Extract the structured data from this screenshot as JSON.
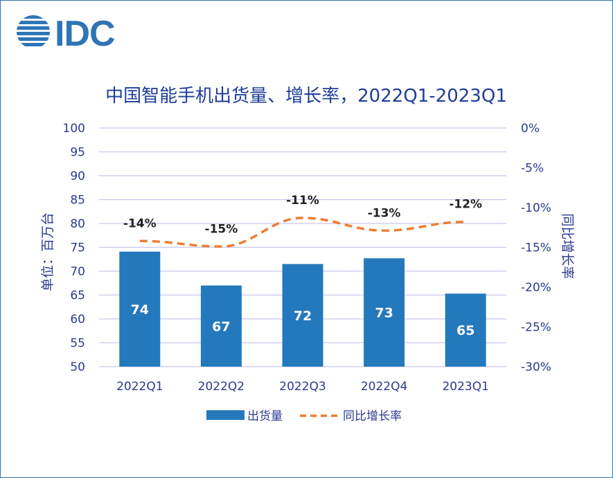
{
  "brand": {
    "logo_text": "IDC",
    "color": "#2e75b6"
  },
  "colors": {
    "bar": "#2479bd",
    "line": "#ed7d31",
    "grid": "#c8c8ee",
    "text": "#2b3a8f",
    "title": "#1f3d99"
  },
  "chart_data": {
    "type": "bar",
    "title": "中国智能手机出货量、增长率，2022Q1-2023Q1",
    "categories": [
      "2022Q1",
      "2022Q2",
      "2022Q3",
      "2022Q4",
      "2023Q1"
    ],
    "series": [
      {
        "name": "出货量",
        "type": "bar",
        "axis": "left",
        "values": [
          74.1,
          67,
          71.5,
          72.7,
          65.3
        ],
        "labels": [
          "74",
          "67",
          "72",
          "73",
          "65"
        ]
      },
      {
        "name": "同比增长率",
        "type": "line",
        "axis": "right",
        "style": "dashed",
        "values": [
          -14.2,
          -14.9,
          -11.3,
          -12.9,
          -11.8
        ],
        "labels": [
          "-14%",
          "-15%",
          "-11%",
          "-13%",
          "-12%"
        ]
      }
    ],
    "ylabel": "单位：百万台",
    "y2label": "同比增长率",
    "ylim": [
      50,
      100
    ],
    "y2lim": [
      -30,
      0
    ],
    "yticks": [
      "100",
      "95",
      "90",
      "85",
      "80",
      "75",
      "70",
      "65",
      "60",
      "55",
      "50"
    ],
    "y2ticks": [
      "0%",
      "-5%",
      "-10%",
      "-15%",
      "-20%",
      "-25%",
      "-30%"
    ],
    "grid": true,
    "legend": "bottom"
  }
}
